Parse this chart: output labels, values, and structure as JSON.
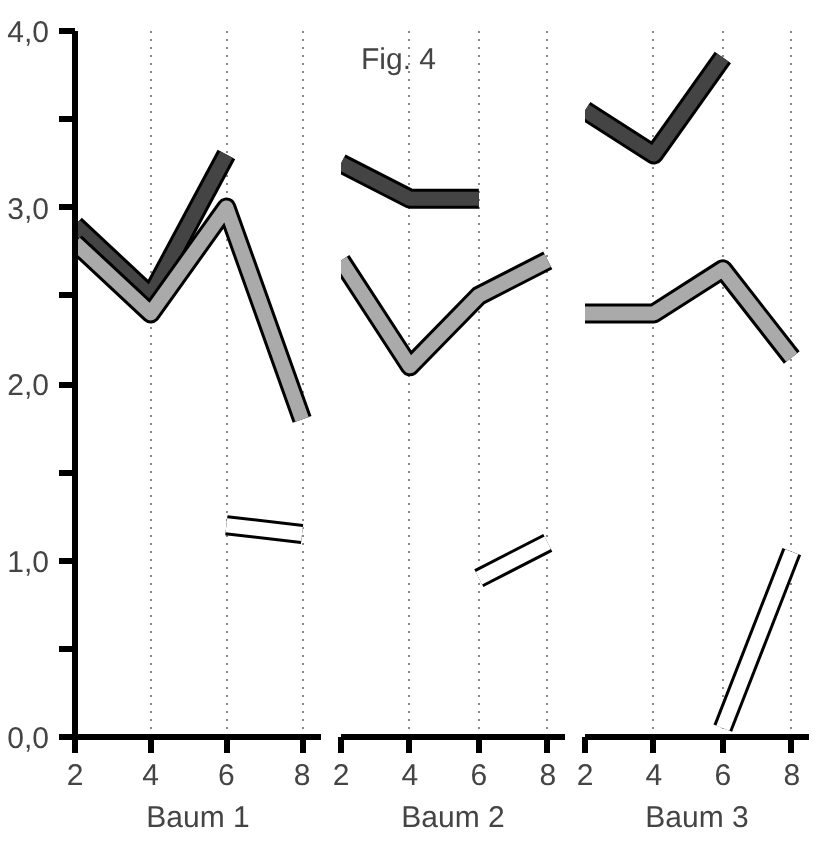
{
  "chart_data": [
    {
      "type": "line",
      "xlabel": "Baum 1",
      "x": [
        2,
        4,
        6,
        8
      ],
      "xlim": [
        2,
        8.5
      ],
      "xticks": [
        2,
        4,
        6,
        8
      ],
      "ylim": [
        0,
        4
      ],
      "yticks": [
        {
          "value": 0,
          "label": "0,0"
        },
        {
          "value": 0.5,
          "label": null
        },
        {
          "value": 1,
          "label": "1,0"
        },
        {
          "value": 1.5,
          "label": null
        },
        {
          "value": 2,
          "label": "2,0"
        },
        {
          "value": 2.5,
          "label": null
        },
        {
          "value": 3,
          "label": "3,0"
        },
        {
          "value": 3.5,
          "label": null
        },
        {
          "value": 4,
          "label": "4,0"
        }
      ],
      "grid": "x",
      "series": [
        {
          "color": "#444444",
          "values": [
            2.9,
            2.5,
            3.3,
            null
          ]
        },
        {
          "color": "#aaaaaa",
          "values": [
            2.8,
            2.4,
            3.0,
            1.8
          ]
        },
        {
          "color": "#ffffff",
          "values": [
            null,
            null,
            1.2,
            1.15
          ]
        }
      ]
    },
    {
      "type": "line",
      "xlabel": "Baum 2",
      "x": [
        2,
        4,
        6,
        8
      ],
      "xlim": [
        2,
        8.5
      ],
      "xticks": [
        2,
        4,
        6,
        8
      ],
      "ylim": [
        0,
        4
      ],
      "tick_labels": "x",
      "grid": "x",
      "annotations": [
        "Fig. 4"
      ],
      "series": [
        {
          "color": "#444444",
          "values": [
            3.25,
            3.05,
            3.05,
            null
          ]
        },
        {
          "color": "#aaaaaa",
          "values": [
            2.7,
            2.1,
            2.5,
            2.7
          ]
        },
        {
          "color": "#ffffff",
          "values": [
            null,
            null,
            0.9,
            1.1
          ]
        }
      ]
    },
    {
      "type": "line",
      "xlabel": "Baum 3",
      "x": [
        2,
        4,
        6,
        8
      ],
      "xlim": [
        2,
        8.5
      ],
      "xticks": [
        2,
        4,
        6,
        8
      ],
      "ylim": [
        0,
        4
      ],
      "tick_labels": "x",
      "grid": "x",
      "series": [
        {
          "color": "#444444",
          "values": [
            3.55,
            3.3,
            3.85,
            null
          ]
        },
        {
          "color": "#aaaaaa",
          "values": [
            2.4,
            2.4,
            2.65,
            2.15
          ]
        },
        {
          "color": "#ffffff",
          "values": [
            null,
            null,
            0.05,
            1.05
          ]
        }
      ]
    }
  ]
}
